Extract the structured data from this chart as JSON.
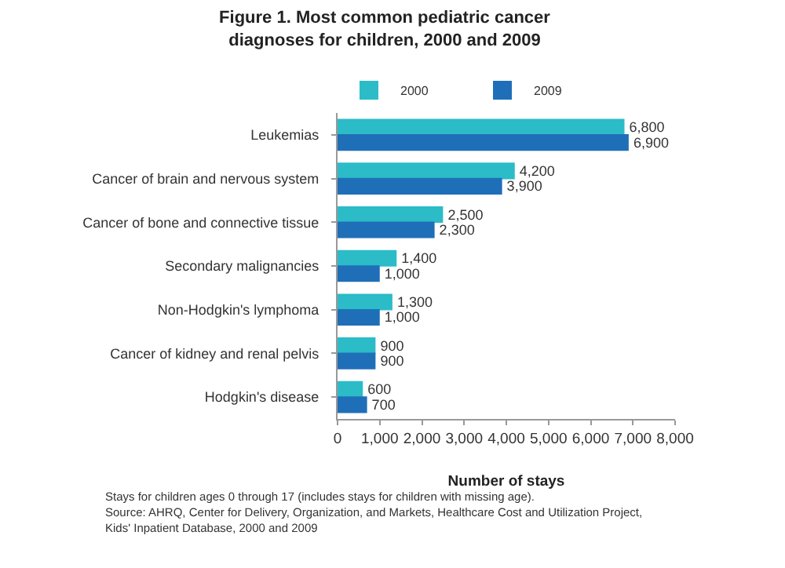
{
  "chart_data": {
    "type": "bar",
    "orientation": "horizontal",
    "title": "Figure 1. Most common pediatric cancer diagnoses for children, 2000 and 2009",
    "categories": [
      "Leukemias",
      "Cancer of brain and nervous system",
      "Cancer of bone and connective tissue",
      "Secondary malignancies",
      "Non-Hodgkin's lymphoma",
      "Cancer of kidney and renal pelvis",
      "Hodgkin's disease"
    ],
    "series": [
      {
        "name": "2000",
        "color": "#2bbcc8",
        "values": [
          6800,
          4200,
          2500,
          1400,
          1300,
          900,
          600
        ],
        "value_labels": [
          "6,800",
          "4,200",
          "2,500",
          "1,400",
          "1,300",
          "900",
          "600"
        ]
      },
      {
        "name": "2009",
        "color": "#1f6fb8",
        "values": [
          6900,
          3900,
          2300,
          1000,
          1000,
          900,
          700
        ],
        "value_labels": [
          "6,900",
          "3,900",
          "2,300",
          "1,000",
          "1,000",
          "900",
          "700"
        ]
      }
    ],
    "xlabel": "Number of stays",
    "xlim": [
      0,
      8000
    ],
    "xticks": [
      {
        "value": 0,
        "label": "0"
      },
      {
        "value": 1000,
        "label": "1,000"
      },
      {
        "value": 2000,
        "label": "2,000"
      },
      {
        "value": 3000,
        "label": "3,000"
      },
      {
        "value": 4000,
        "label": "4,000"
      },
      {
        "value": 5000,
        "label": "5,000"
      },
      {
        "value": 6000,
        "label": "6,000"
      },
      {
        "value": 7000,
        "label": "7,000"
      },
      {
        "value": 8000,
        "label": "8,000"
      }
    ],
    "grid": false,
    "legend": "top left",
    "annotations": [
      "Stays for children ages 0 through 17 (includes stays for children with missing age).",
      "Source: AHRQ, Center for Delivery, Organization, and Markets, Healthcare Cost and Utilization Project,",
      "Kids' Inpatient Database, 2000 and 2009"
    ]
  }
}
